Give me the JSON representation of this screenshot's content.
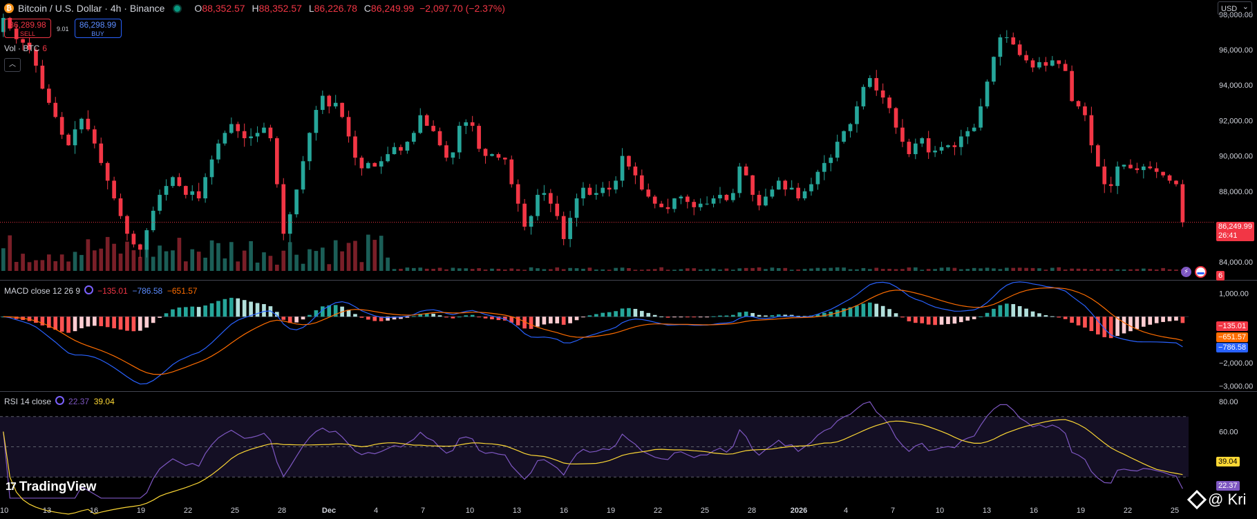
{
  "header": {
    "symbol": "Bitcoin / U.S. Dollar · 4h · Binance",
    "ohlc": [
      {
        "k": "O",
        "v": "88,352.57"
      },
      {
        "k": "H",
        "v": "88,352.57"
      },
      {
        "k": "L",
        "v": "86,226.78"
      },
      {
        "k": "C",
        "v": "86,249.99"
      }
    ],
    "change": "−2,097.70 (−2.37%)"
  },
  "trade": {
    "sell_price": "86,289.98",
    "sell_label": "SELL",
    "spread": "9.01",
    "buy_price": "86,298.99",
    "buy_label": "BUY"
  },
  "volume": {
    "label": "Vol · BTC",
    "value": "6"
  },
  "currency": "USD",
  "macd": {
    "label": "MACD close 12 26 9",
    "hist": "−135.01",
    "macd": "−786.58",
    "signal": "−651.57"
  },
  "rsi": {
    "label": "RSI 14 close",
    "rsi": "22.37",
    "ma": "39.04"
  },
  "last_price": {
    "price": "86,249.99",
    "countdown": "26:41"
  },
  "volume_badge": "6",
  "branding": {
    "tradingview": "TradingView",
    "watermark": "@ Kri"
  },
  "colors": {
    "up": "#26a69a",
    "down": "#f23645",
    "macd_line": "#2962ff",
    "signal_line": "#ff6d00",
    "rsi_line": "#7e57c2",
    "rsi_ma": "#fdd835"
  },
  "chart_data": {
    "type": "candlestick",
    "timeframe": "4h",
    "price_axis": {
      "ticks": [
        "98,000.00",
        "96,000.00",
        "94,000.00",
        "92,000.00",
        "90,000.00",
        "88,000.00",
        "84,000.00"
      ],
      "range": [
        83500,
        98500
      ]
    },
    "macd_axis": {
      "ticks": [
        "1,000.00",
        "−2,000.00",
        "−3,000.00"
      ],
      "range": [
        -3100,
        1500
      ]
    },
    "rsi_axis": {
      "ticks": [
        "80.00",
        "60.00"
      ],
      "range": [
        15,
        85
      ]
    },
    "time_axis": {
      "ticks": [
        "10",
        "13",
        "16",
        "19",
        "22",
        "25",
        "28",
        "Dec",
        "4",
        "7",
        "10",
        "13",
        "16",
        "19",
        "22",
        "25",
        "28",
        "2026",
        "4",
        "7",
        "10",
        "13",
        "16",
        "19",
        "22",
        "25"
      ]
    },
    "closes": [
      97800,
      97200,
      96600,
      96400,
      96000,
      95100,
      93800,
      93000,
      92200,
      91200,
      90600,
      91500,
      92100,
      91500,
      90700,
      89600,
      88600,
      87600,
      86600,
      85600,
      85000,
      84700,
      85800,
      86900,
      87800,
      88300,
      88800,
      88300,
      87800,
      88000,
      87600,
      88800,
      89800,
      90700,
      91300,
      91800,
      91400,
      91000,
      91100,
      91300,
      91600,
      91000,
      88400,
      85600,
      86700,
      88100,
      89700,
      91300,
      92600,
      93400,
      92800,
      93000,
      92200,
      91100,
      89900,
      89300,
      89600,
      89400,
      89700,
      90100,
      90500,
      90300,
      90800,
      91300,
      92300,
      91700,
      91400,
      90600,
      89900,
      90200,
      91700,
      91900,
      91700,
      90400,
      90000,
      90100,
      89900,
      89800,
      88400,
      87300,
      86000,
      86600,
      87800,
      87900,
      87300,
      86600,
      85300,
      86500,
      87600,
      88200,
      87800,
      87900,
      88200,
      88100,
      88600,
      90000,
      89400,
      88900,
      88100,
      87700,
      87300,
      87100,
      87000,
      87600,
      87700,
      87400,
      87100,
      87300,
      87300,
      87600,
      87800,
      87500,
      87900,
      89400,
      88900,
      87800,
      87200,
      87700,
      88100,
      88600,
      88100,
      88200,
      87600,
      88000,
      88400,
      89100,
      89600,
      89900,
      90800,
      91400,
      91800,
      92800,
      93900,
      94400,
      93700,
      93300,
      92700,
      91600,
      90800,
      90100,
      90700,
      91000,
      90200,
      90300,
      90500,
      90600,
      90500,
      91100,
      91400,
      91600,
      92800,
      94200,
      95600,
      96700,
      96700,
      96300,
      95700,
      95400,
      95000,
      95300,
      95100,
      95400,
      95200,
      94800,
      93100,
      92800,
      92300,
      90600,
      89400,
      88400,
      88300,
      89400,
      89500,
      89300,
      89200,
      89400,
      89300,
      89100,
      88900,
      88600,
      88400,
      86249.99
    ]
  }
}
